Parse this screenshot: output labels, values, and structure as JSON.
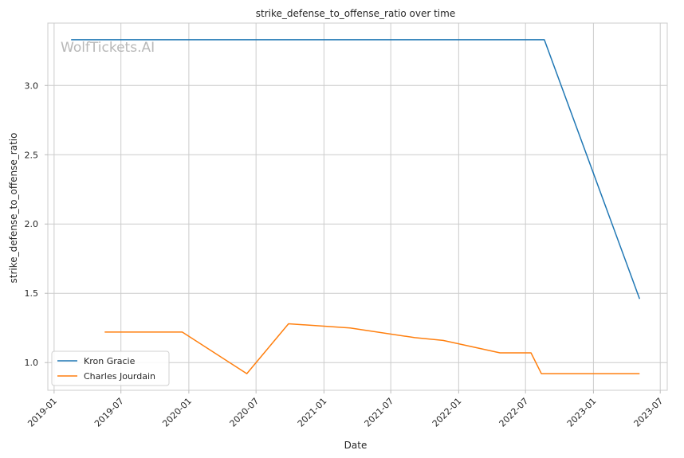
{
  "chart_data": {
    "type": "line",
    "title": "strike_defense_to_offense_ratio over time",
    "xlabel": "Date",
    "ylabel": "strike_defense_to_offense_ratio",
    "watermark": "WolfTickets.AI",
    "x_axis_type": "date",
    "xlim": [
      "2018-12-15",
      "2023-07-20"
    ],
    "ylim": [
      0.8,
      3.45
    ],
    "x_ticks": [
      "2019-01",
      "2019-07",
      "2020-01",
      "2020-07",
      "2021-01",
      "2021-07",
      "2022-01",
      "2022-07",
      "2023-01",
      "2023-07"
    ],
    "y_ticks": [
      "1.0",
      "1.5",
      "2.0",
      "2.5",
      "3.0"
    ],
    "grid": true,
    "legend_position": "bottom-left",
    "series": [
      {
        "name": "Kron Gracie",
        "color": "#1f77b4",
        "points": [
          {
            "x": "2019-02-16",
            "y": 3.33
          },
          {
            "x": "2022-08-21",
            "y": 3.33
          },
          {
            "x": "2023-05-06",
            "y": 1.46
          }
        ]
      },
      {
        "name": "Charles Jourdain",
        "color": "#ff7f0e",
        "points": [
          {
            "x": "2019-05-18",
            "y": 1.22
          },
          {
            "x": "2019-12-14",
            "y": 1.22
          },
          {
            "x": "2020-06-06",
            "y": 0.92
          },
          {
            "x": "2020-09-27",
            "y": 1.28
          },
          {
            "x": "2021-03-13",
            "y": 1.25
          },
          {
            "x": "2021-09-04",
            "y": 1.18
          },
          {
            "x": "2021-11-20",
            "y": 1.16
          },
          {
            "x": "2022-04-23",
            "y": 1.07
          },
          {
            "x": "2022-07-16",
            "y": 1.07
          },
          {
            "x": "2022-08-13",
            "y": 0.92
          },
          {
            "x": "2023-05-06",
            "y": 0.92
          }
        ]
      }
    ]
  }
}
